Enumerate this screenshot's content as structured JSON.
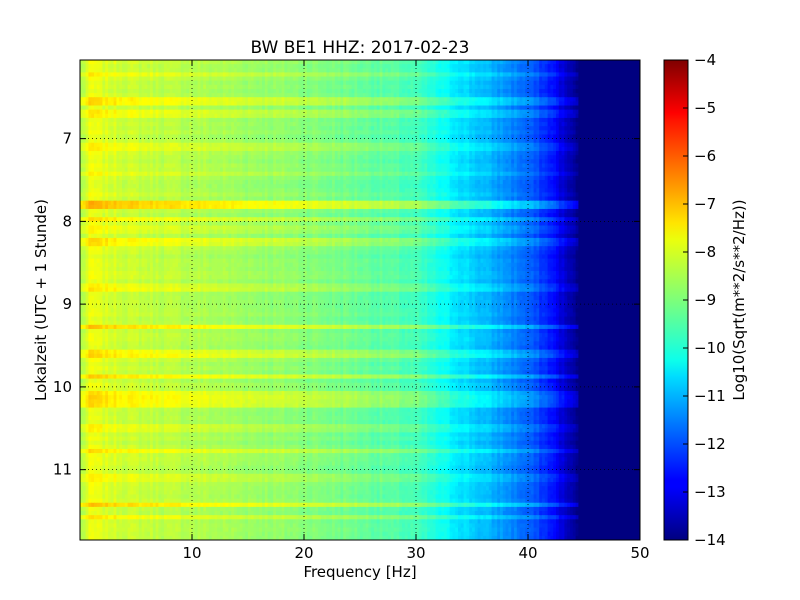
{
  "chart_data": {
    "type": "heatmap",
    "title": "BW BE1 HHZ: 2017-02-23",
    "xlabel": "Frequency [Hz]",
    "ylabel": "Lokalzeit (UTC + 1 Stunde)",
    "xlim": [
      0,
      50
    ],
    "ylim": [
      6.05,
      11.85
    ],
    "y_inverted": true,
    "x_ticks": [
      10,
      20,
      30,
      40,
      50
    ],
    "y_ticks": [
      7,
      8,
      9,
      10,
      11
    ],
    "grid": true,
    "colormap": "jet",
    "colorbar": {
      "label": "Log10(Sqrt(m**2/s**2/Hz))",
      "min": -14,
      "max": -4,
      "ticks": [
        -4,
        -5,
        -6,
        -7,
        -8,
        -9,
        -10,
        -11,
        -12,
        -13,
        -14
      ]
    },
    "frequency_profile": {
      "x": [
        0,
        1,
        2,
        5,
        10,
        15,
        20,
        25,
        30,
        33,
        36,
        38,
        40,
        42,
        43,
        44,
        45,
        50
      ],
      "values": [
        -8.6,
        -7.9,
        -8.1,
        -8.3,
        -8.5,
        -8.7,
        -8.9,
        -9.2,
        -9.6,
        -10.3,
        -10.9,
        -11.3,
        -11.8,
        -12.5,
        -13.1,
        -13.7,
        -14,
        -14
      ]
    },
    "bands": [
      {
        "time": 6.24,
        "offset": 0.4
      },
      {
        "time": 6.55,
        "offset": 0.55
      },
      {
        "time": 6.7,
        "offset": 0.45
      },
      {
        "time": 7.1,
        "offset": 0.3
      },
      {
        "time": 7.42,
        "offset": 0.25
      },
      {
        "time": 7.8,
        "offset": 1.0
      },
      {
        "time": 7.97,
        "offset": 0.5
      },
      {
        "time": 8.1,
        "offset": 0.3
      },
      {
        "time": 8.25,
        "offset": 0.55
      },
      {
        "time": 8.8,
        "offset": 0.35
      },
      {
        "time": 9.28,
        "offset": 0.7
      },
      {
        "time": 9.6,
        "offset": 0.55
      },
      {
        "time": 9.88,
        "offset": 0.75
      },
      {
        "time": 10.1,
        "offset": 0.6
      },
      {
        "time": 10.2,
        "offset": 0.5
      },
      {
        "time": 10.5,
        "offset": 0.35
      },
      {
        "time": 10.78,
        "offset": 0.6
      },
      {
        "time": 11.1,
        "offset": 0.35
      },
      {
        "time": 11.42,
        "offset": 0.75
      },
      {
        "time": 11.58,
        "offset": 0.4
      }
    ]
  }
}
